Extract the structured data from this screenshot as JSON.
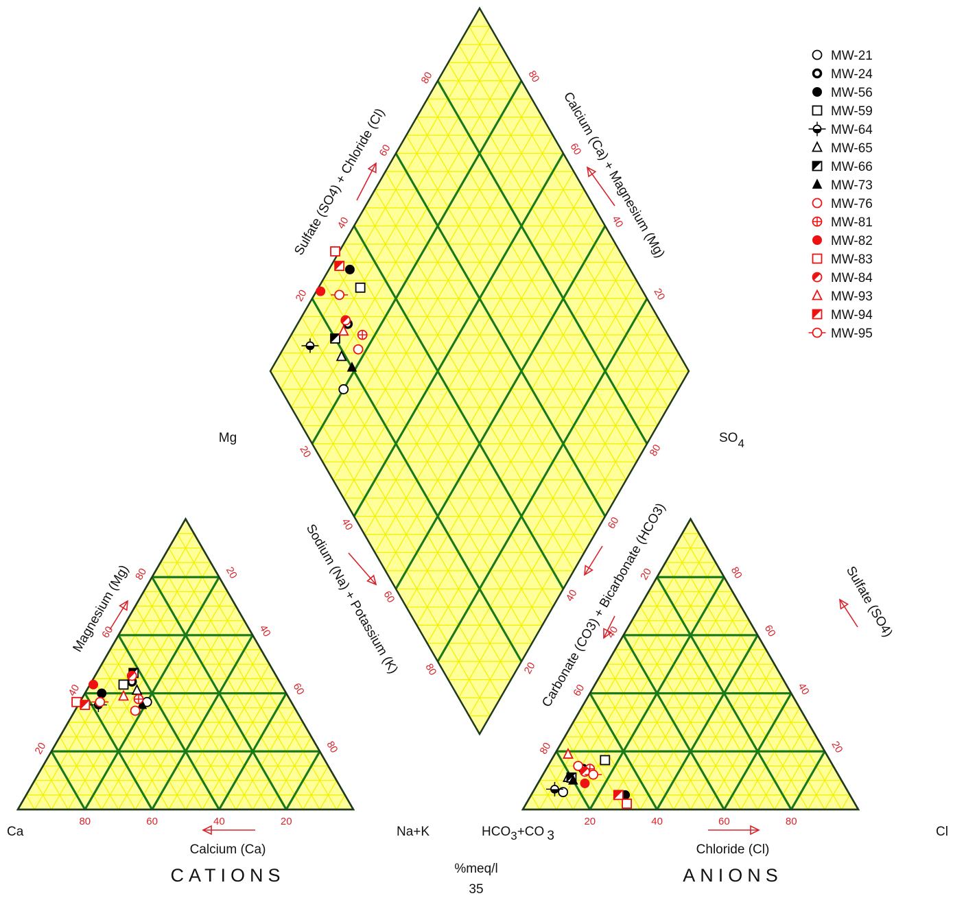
{
  "chart_data": {
    "type": "scatter",
    "subtype": "piper-trilinear",
    "grid": true,
    "colors": {
      "grid_minor": "#f2f200",
      "grid_major": "#1a7a1a",
      "outline": "#1f3a1f",
      "tick": "#d8232a",
      "background": "#ffff99",
      "black_series": "#000000",
      "red_series": "#ee1111"
    },
    "cations": {
      "title": "CATIONS",
      "apex_top": "Mg",
      "corner_left": "Ca",
      "corner_right": "Na+K",
      "axis_left": "Magnesium (Mg)",
      "axis_right": "Sodium (Na) + Potassium (K)",
      "axis_bottom": "Calcium (Ca)",
      "ticks_bottom": [
        "80",
        "60",
        "40",
        "20"
      ],
      "ticks_left": [
        "20",
        "40",
        "60",
        "80"
      ],
      "ticks_right": [
        "20",
        "40",
        "60",
        "80"
      ]
    },
    "anions": {
      "title": "ANIONS",
      "apex_top": "SO",
      "apex_top_sub": "4",
      "corner_left": "HCO",
      "corner_left_sub": "3",
      "corner_left_rest": "+CO",
      "corner_left_sub2": "3",
      "corner_right": "Cl",
      "axis_left": "Carbonate (CO3) + Bicarbonate (HCO3)",
      "axis_right": "Sulfate (SO4)",
      "axis_bottom": "Chloride (Cl)",
      "ticks_bottom": [
        "20",
        "40",
        "60",
        "80"
      ],
      "ticks_left": [
        "80",
        "60",
        "40",
        "20"
      ],
      "ticks_right": [
        "80",
        "60",
        "40",
        "20"
      ]
    },
    "diamond": {
      "axis_upper_left": "Sulfate (SO4) + Chloride (Cl)",
      "axis_upper_right": "Calcium (Ca) + Magnesium (Mg)",
      "ticks_upper_left": [
        "20",
        "40",
        "60",
        "80"
      ],
      "ticks_upper_right": [
        "80",
        "60",
        "40",
        "20"
      ],
      "ticks_lower_left": [
        "20",
        "40",
        "60",
        "80"
      ],
      "ticks_lower_right": [
        "20",
        "40",
        "60",
        "80"
      ]
    },
    "units": "%meq/l",
    "page_number": "35",
    "series": [
      {
        "name": "MW-21",
        "marker": "circle-open",
        "color": "#000000",
        "cation": {
          "ca": 43,
          "mg": 37
        },
        "anion": {
          "cl": 9,
          "so4": 6
        }
      },
      {
        "name": "MW-24",
        "marker": "circle-thick",
        "color": "#000000",
        "cation": {
          "ca": 44,
          "mg": 44
        },
        "anion": {
          "cl": 11,
          "so4": 14
        }
      },
      {
        "name": "MW-56",
        "marker": "circle-filled",
        "color": "#000000",
        "cation": {
          "ca": 55,
          "mg": 40
        },
        "anion": {
          "cl": 28,
          "so4": 5
        }
      },
      {
        "name": "MW-59",
        "marker": "square-open",
        "color": "#000000",
        "cation": {
          "ca": 47,
          "mg": 43
        },
        "anion": {
          "cl": 16,
          "so4": 17
        }
      },
      {
        "name": "MW-64",
        "marker": "diamond-cross",
        "color": "#000000",
        "cation": {
          "ca": 58,
          "mg": 36
        },
        "anion": {
          "cl": 6,
          "so4": 7
        }
      },
      {
        "name": "MW-65",
        "marker": "triangle-open",
        "color": "#000000",
        "cation": {
          "ca": 44,
          "mg": 41
        },
        "anion": {
          "cl": 8,
          "so4": 11
        }
      },
      {
        "name": "MW-66",
        "marker": "square-half",
        "color": "#000000",
        "cation": {
          "ca": 42,
          "mg": 47
        },
        "anion": {
          "cl": 9,
          "so4": 11
        }
      },
      {
        "name": "MW-73",
        "marker": "triangle-filled",
        "color": "#000000",
        "cation": {
          "ca": 45,
          "mg": 36
        },
        "anion": {
          "cl": 10,
          "so4": 10
        }
      },
      {
        "name": "MW-76",
        "marker": "circle-open",
        "color": "#ee1111",
        "cation": {
          "ca": 48,
          "mg": 34
        },
        "anion": {
          "cl": 9,
          "so4": 15
        }
      },
      {
        "name": "MW-81",
        "marker": "circle-plus",
        "color": "#ee1111",
        "cation": {
          "ca": 45,
          "mg": 38
        },
        "anion": {
          "cl": 13,
          "so4": 14
        }
      },
      {
        "name": "MW-82",
        "marker": "circle-filled",
        "color": "#ee1111",
        "cation": {
          "ca": 56,
          "mg": 43
        },
        "anion": {
          "cl": 14,
          "so4": 9
        }
      },
      {
        "name": "MW-83",
        "marker": "square-open",
        "color": "#ee1111",
        "cation": {
          "ca": 64,
          "mg": 37
        },
        "anion": {
          "cl": 30,
          "so4": 2
        }
      },
      {
        "name": "MW-84",
        "marker": "circle-half",
        "color": "#ee1111",
        "cation": {
          "ca": 43,
          "mg": 46
        },
        "anion": {
          "cl": 12,
          "so4": 13
        }
      },
      {
        "name": "MW-93",
        "marker": "triangle-open",
        "color": "#ee1111",
        "cation": {
          "ca": 49,
          "mg": 39
        },
        "anion": {
          "cl": 4,
          "so4": 19
        }
      },
      {
        "name": "MW-94",
        "marker": "square-half",
        "color": "#ee1111",
        "cation": {
          "ca": 62,
          "mg": 36
        },
        "anion": {
          "cl": 26,
          "so4": 5
        }
      },
      {
        "name": "MW-95",
        "marker": "circle-line",
        "color": "#ee1111",
        "cation": {
          "ca": 57,
          "mg": 37
        },
        "anion": {
          "cl": 15,
          "so4": 12
        }
      }
    ]
  }
}
